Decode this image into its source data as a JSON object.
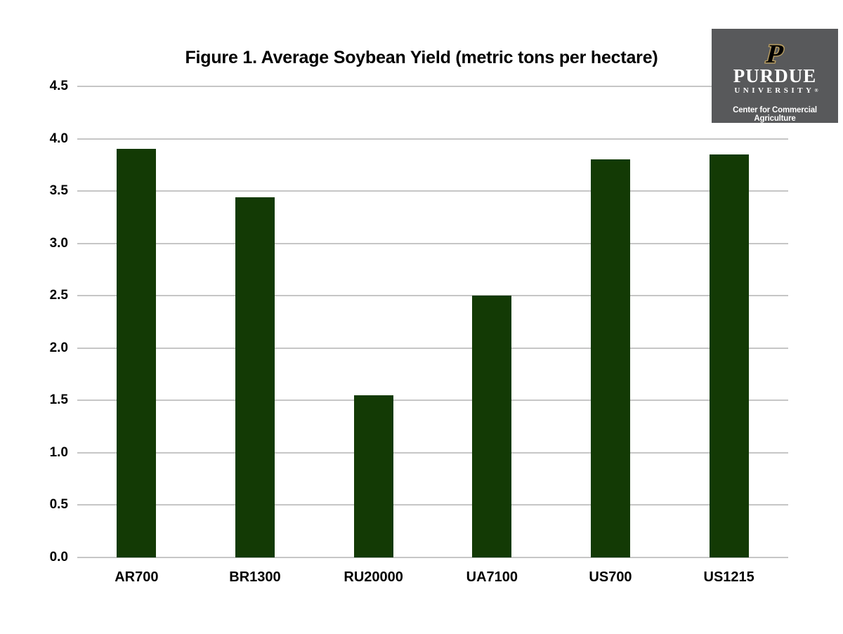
{
  "title": "Figure 1. Average Soybean Yield (metric tons per hectare)",
  "logo": {
    "monogram": "P",
    "wordmark": "PURDUE",
    "university": "UNIVERSITY",
    "registered_mark": "®",
    "subtitle": "Center for Commercial Agriculture",
    "background_color": "#58595B",
    "gold_color": "#B69C62",
    "text_color": "#FFFFFF"
  },
  "chart_data": {
    "type": "bar",
    "title": "Figure 1. Average Soybean Yield (metric tons per hectare)",
    "categories": [
      "AR700",
      "BR1300",
      "RU20000",
      "UA7100",
      "US700",
      "US1215"
    ],
    "values": [
      3.9,
      3.44,
      1.55,
      2.5,
      3.8,
      3.85
    ],
    "xlabel": "",
    "ylabel": "",
    "ylim": [
      0,
      4.5
    ],
    "ytick_step": 0.5,
    "ytick_labels": [
      "0.0",
      "0.5",
      "1.0",
      "1.5",
      "2.0",
      "2.5",
      "3.0",
      "3.5",
      "4.0",
      "4.5"
    ],
    "grid": true,
    "legend": false,
    "bar_color": "#133A05",
    "gridline_color": "#C6C6C6",
    "text_color": "#000000"
  }
}
